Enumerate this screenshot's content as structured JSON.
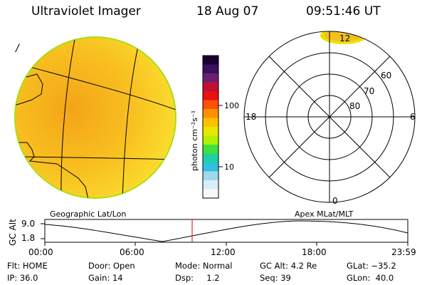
{
  "header": {
    "title": "Ultraviolet Imager",
    "date": "18 Aug 07",
    "time": "09:51:46 UT"
  },
  "image_panel": {
    "corner_mark": "/",
    "fill_color": "#f8c018",
    "rim_color": "#a0e000",
    "grid_color": "#000000"
  },
  "colorbar": {
    "unit_label": "photon cm⁻²s⁻¹",
    "ticks": [
      "100",
      "10"
    ],
    "colors": [
      "#1a0030",
      "#3a1060",
      "#6a2070",
      "#c01030",
      "#e81010",
      "#ff5000",
      "#ff9000",
      "#ffc000",
      "#e8e800",
      "#b0f000",
      "#40e040",
      "#20d0a0",
      "#30c0e0",
      "#a0d8f0",
      "#d8eef8",
      "#f8f8f8"
    ]
  },
  "polar_plot": {
    "lat_labels": [
      "80",
      "70",
      "60"
    ],
    "mlt_labels": {
      "top": "12",
      "left": "18",
      "right": "6",
      "bottom": "0"
    },
    "highlight_color": "#f0e000"
  },
  "panel_labels": {
    "left": "Geographic Lat/Lon",
    "right": "Apex MLat/MLT"
  },
  "alt_plot": {
    "ylabel": "GC Alt",
    "yticks": [
      "9.0",
      "1.8"
    ],
    "xticks": [
      "00:00",
      "06:00",
      "12:00",
      "18:00",
      "23:59"
    ],
    "current_marker_color": "#e00000"
  },
  "info": {
    "filter": "Flt: HOME",
    "door": "Door: Open",
    "mode": "Mode: Normal",
    "gc_alt": "GC Alt: 4.2 Re",
    "glat": "GLat: −35.2",
    "ip": "IP: 36.0",
    "gain": "Gain: 14",
    "dsp": "Dsp:     1.2",
    "seq": "Seq: 39",
    "glon": "GLon:  40.0"
  }
}
